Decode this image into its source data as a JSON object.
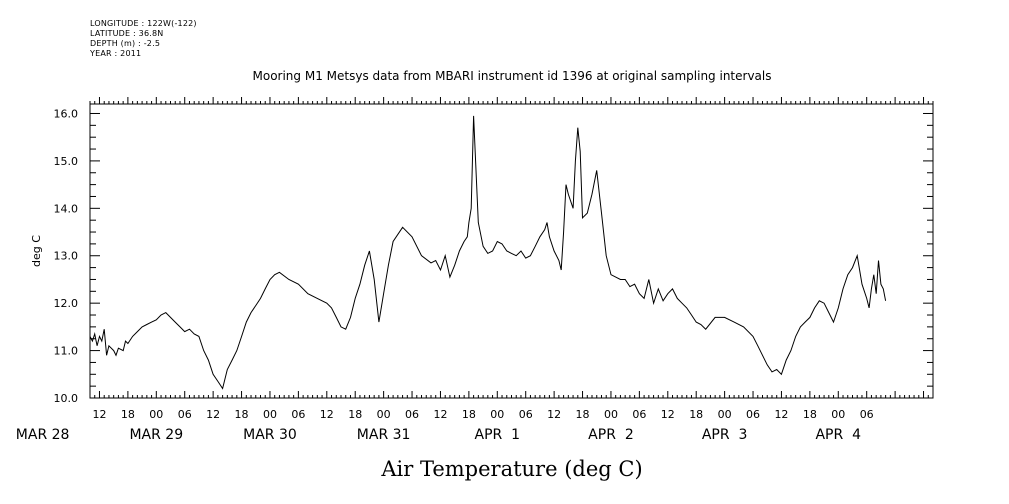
{
  "meta": {
    "longitude": "LONGITUDE : 122W(-122)",
    "latitude": "LATITUDE : 36.8N",
    "depth": "DEPTH (m) : -2.5",
    "year": "YEAR : 2011"
  },
  "chart_data": {
    "type": "line",
    "title": "Mooring M1 Metsys data from MBARI instrument id 1396 at original sampling intervals",
    "xlabel": "Air Temperature (deg C)",
    "ylabel": "deg C",
    "ylim": [
      10.0,
      16.2
    ],
    "y_ticks": [
      "10.0",
      "11.0",
      "12.0",
      "13.0",
      "14.0",
      "15.0",
      "16.0"
    ],
    "xlim_hours": [
      10,
      188
    ],
    "x_hour_labels": [
      "12",
      "18",
      "00",
      "06",
      "12",
      "18",
      "00",
      "06",
      "12",
      "18",
      "00",
      "06",
      "12",
      "18",
      "00",
      "06",
      "12",
      "18",
      "00",
      "06",
      "12",
      "18",
      "00",
      "06",
      "12",
      "18",
      "00",
      "06"
    ],
    "x_date_labels": [
      "MAR 28",
      "MAR 29",
      "MAR 30",
      "MAR 31",
      "APR  1",
      "APR  2",
      "APR  3",
      "APR  4"
    ],
    "grid": false,
    "series": [
      {
        "color": "#000000",
        "x": [
          "MAR 28 10:00",
          "MAR 28 10:30",
          "MAR 28 11:00",
          "MAR 28 11:30",
          "MAR 28 12:00",
          "MAR 28 12:30",
          "MAR 28 13:00",
          "MAR 28 13:30",
          "MAR 28 14:00",
          "MAR 28 15:00",
          "MAR 28 15:30",
          "MAR 28 16:00",
          "MAR 28 17:00",
          "MAR 28 17:30",
          "MAR 28 18:00",
          "MAR 28 19:00",
          "MAR 28 20:00",
          "MAR 28 21:00",
          "MAR 28 22:00",
          "MAR 28 23:00",
          "MAR 29 00:00",
          "MAR 29 01:00",
          "MAR 29 02:00",
          "MAR 29 03:00",
          "MAR 29 04:00",
          "MAR 29 05:00",
          "MAR 29 06:00",
          "MAR 29 07:00",
          "MAR 29 08:00",
          "MAR 29 09:00",
          "MAR 29 10:00",
          "MAR 29 11:00",
          "MAR 29 12:00",
          "MAR 29 13:00",
          "MAR 29 14:00",
          "MAR 29 15:00",
          "MAR 29 16:00",
          "MAR 29 17:00",
          "MAR 29 18:00",
          "MAR 29 19:00",
          "MAR 29 20:00",
          "MAR 29 21:00",
          "MAR 29 22:00",
          "MAR 29 23:00",
          "MAR 30 00:00",
          "MAR 30 01:00",
          "MAR 30 02:00",
          "MAR 30 04:00",
          "MAR 30 06:00",
          "MAR 30 08:00",
          "MAR 30 10:00",
          "MAR 30 12:00",
          "MAR 30 13:00",
          "MAR 30 14:00",
          "MAR 30 15:00",
          "MAR 30 16:00",
          "MAR 30 17:00",
          "MAR 30 18:00",
          "MAR 30 19:00",
          "MAR 30 20:00",
          "MAR 30 21:00",
          "MAR 30 22:00",
          "MAR 30 23:00",
          "MAR 31 00:00",
          "MAR 31 01:00",
          "MAR 31 02:00",
          "MAR 31 04:00",
          "MAR 31 06:00",
          "MAR 31 08:00",
          "MAR 31 10:00",
          "MAR 31 11:00",
          "MAR 31 12:00",
          "MAR 31 13:00",
          "MAR 31 14:00",
          "MAR 31 15:00",
          "MAR 31 16:00",
          "MAR 31 17:00",
          "MAR 31 17:40",
          "MAR 31 18:00",
          "MAR 31 18:30",
          "MAR 31 19:00",
          "MAR 31 20:00",
          "MAR 31 21:00",
          "MAR 31 22:00",
          "MAR 31 23:00",
          "APR 1 00:00",
          "APR 1 01:00",
          "APR 1 02:00",
          "APR 1 03:00",
          "APR 1 04:00",
          "APR 1 05:00",
          "APR 1 06:00",
          "APR 1 07:00",
          "APR 1 08:00",
          "APR 1 09:00",
          "APR 1 10:00",
          "APR 1 10:30",
          "APR 1 11:00",
          "APR 1 12:00",
          "APR 1 13:00",
          "APR 1 13:30",
          "APR 1 14:00",
          "APR 1 14:30",
          "APR 1 15:00",
          "APR 1 16:00",
          "APR 1 16:30",
          "APR 1 17:00",
          "APR 1 17:30",
          "APR 1 18:00",
          "APR 1 19:00",
          "APR 1 20:00",
          "APR 1 21:00",
          "APR 1 22:00",
          "APR 1 23:00",
          "APR 2 00:00",
          "APR 2 01:00",
          "APR 2 02:00",
          "APR 2 03:00",
          "APR 2 04:00",
          "APR 2 05:00",
          "APR 2 06:00",
          "APR 2 07:00",
          "APR 2 08:00",
          "APR 2 09:00",
          "APR 2 10:00",
          "APR 2 11:00",
          "APR 2 12:00",
          "APR 2 13:00",
          "APR 2 14:00",
          "APR 2 15:00",
          "APR 2 16:00",
          "APR 2 17:00",
          "APR 2 18:00",
          "APR 2 19:00",
          "APR 2 20:00",
          "APR 2 22:00",
          "APR 3 00:00",
          "APR 3 02:00",
          "APR 3 04:00",
          "APR 3 06:00",
          "APR 3 07:00",
          "APR 3 08:00",
          "APR 3 09:00",
          "APR 3 10:00",
          "APR 3 11:00",
          "APR 3 12:00",
          "APR 3 13:00",
          "APR 3 14:00",
          "APR 3 15:00",
          "APR 3 16:00",
          "APR 3 17:00",
          "APR 3 18:00",
          "APR 3 19:00",
          "APR 3 20:00",
          "APR 3 21:00",
          "APR 3 22:00",
          "APR 3 23:00",
          "APR 4 00:00",
          "APR 4 01:00",
          "APR 4 02:00",
          "APR 4 03:00",
          "APR 4 04:00",
          "APR 4 05:00",
          "APR 4 06:00",
          "APR 4 06:30",
          "APR 4 07:00",
          "APR 4 07:30",
          "APR 4 08:00",
          "APR 4 08:30",
          "APR 4 09:00",
          "APR 4 09:30",
          "APR 4 10:00"
        ],
        "y": [
          11.3,
          11.2,
          11.35,
          11.1,
          11.3,
          11.2,
          11.45,
          10.9,
          11.1,
          11.0,
          10.9,
          11.05,
          11.0,
          11.2,
          11.15,
          11.3,
          11.4,
          11.5,
          11.55,
          11.6,
          11.65,
          11.75,
          11.8,
          11.7,
          11.6,
          11.5,
          11.4,
          11.45,
          11.35,
          11.3,
          11.0,
          10.8,
          10.5,
          10.35,
          10.2,
          10.6,
          10.8,
          11.0,
          11.3,
          11.6,
          11.8,
          11.95,
          12.1,
          12.3,
          12.5,
          12.6,
          12.65,
          12.5,
          12.4,
          12.2,
          12.1,
          12.0,
          11.9,
          11.7,
          11.5,
          11.45,
          11.7,
          12.1,
          12.4,
          12.8,
          13.1,
          12.5,
          11.6,
          12.2,
          12.8,
          13.3,
          13.6,
          13.4,
          13.0,
          12.85,
          12.9,
          12.7,
          13.0,
          12.55,
          12.8,
          13.1,
          13.3,
          13.4,
          13.7,
          14.0,
          15.95,
          13.7,
          13.2,
          13.05,
          13.1,
          13.3,
          13.25,
          13.1,
          13.05,
          13.0,
          13.1,
          12.95,
          13.0,
          13.2,
          13.4,
          13.55,
          13.7,
          13.4,
          13.1,
          12.9,
          12.7,
          13.5,
          14.5,
          14.3,
          14.0,
          15.0,
          15.7,
          15.2,
          13.8,
          13.9,
          14.3,
          14.8,
          13.9,
          13.0,
          12.6,
          12.55,
          12.5,
          12.5,
          12.35,
          12.4,
          12.2,
          12.1,
          12.5,
          12.0,
          12.3,
          12.05,
          12.2,
          12.3,
          12.1,
          12.0,
          11.9,
          11.75,
          11.6,
          11.55,
          11.45,
          11.7,
          11.7,
          11.6,
          11.5,
          11.3,
          11.1,
          10.9,
          10.7,
          10.55,
          10.6,
          10.5,
          10.8,
          11.0,
          11.3,
          11.5,
          11.6,
          11.7,
          11.9,
          12.05,
          12.0,
          11.8,
          11.6,
          11.9,
          12.3,
          12.6,
          12.75,
          13.0,
          12.4,
          12.1,
          11.9,
          12.3,
          12.6,
          12.2,
          12.9,
          12.4,
          12.3,
          12.05
        ]
      }
    ]
  }
}
